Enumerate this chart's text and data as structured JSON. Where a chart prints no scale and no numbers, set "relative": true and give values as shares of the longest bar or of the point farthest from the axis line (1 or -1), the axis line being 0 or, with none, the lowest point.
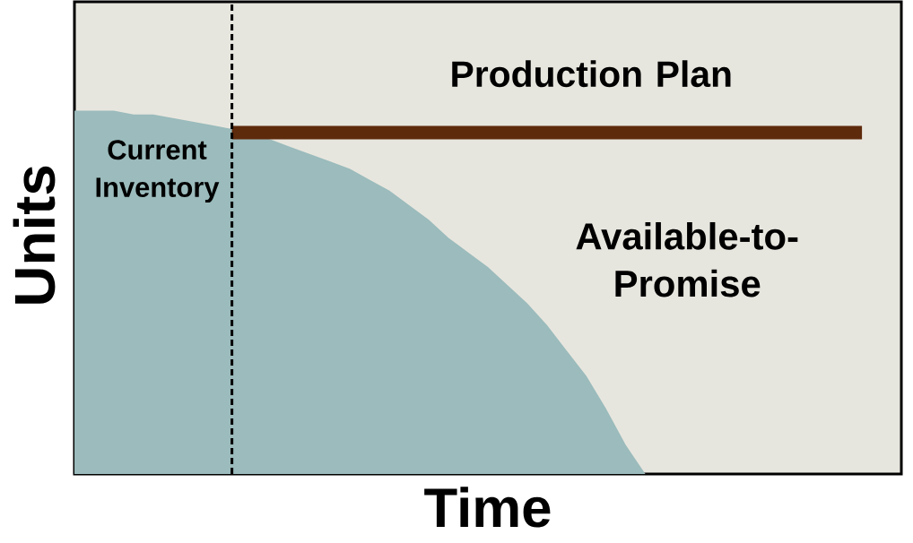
{
  "chart_data": {
    "type": "area",
    "xlabel": "Time",
    "ylabel": "Units",
    "relative": true,
    "categories": [
      null,
      null,
      null,
      null,
      null,
      null,
      null,
      null,
      null,
      null,
      null,
      null,
      null,
      null,
      null,
      null,
      null,
      null,
      null,
      null,
      null,
      null,
      null,
      null,
      null,
      null,
      null,
      null,
      null,
      null,
      null,
      null,
      null,
      null,
      null,
      null,
      null,
      null,
      null,
      null,
      null,
      null,
      null
    ],
    "series": [
      {
        "name": "Current Inventory",
        "color": "#9bbbbc",
        "values": [
          1.0,
          1.0,
          1.0,
          0.99,
          0.99,
          0.98,
          0.97,
          0.96,
          0.95,
          0.94,
          0.92,
          0.9,
          0.88,
          0.86,
          0.84,
          0.81,
          0.78,
          0.74,
          0.7,
          0.65,
          0.61,
          0.57,
          0.52,
          0.47,
          0.41,
          0.34,
          0.27,
          0.18,
          0.08,
          0,
          null,
          null,
          null,
          null,
          null,
          null,
          null,
          null,
          null,
          null,
          null,
          null,
          null
        ]
      },
      {
        "name": "Production Plan",
        "type": "line",
        "color": "#5e2a0c",
        "values": [
          null,
          null,
          null,
          null,
          null,
          null,
          null,
          null,
          0.94,
          0.94,
          0.94,
          0.94,
          0.94,
          0.94,
          0.94,
          0.94,
          0.94,
          0.94,
          0.94,
          0.94,
          0.94,
          0.94,
          0.94,
          0.94,
          0.94,
          0.94,
          0.94,
          0.94,
          0.94,
          0.94,
          0.94,
          0.94,
          0.94,
          0.94,
          0.94,
          0.94,
          0.94,
          0.94,
          0.94,
          0.94,
          0.94,
          null,
          null
        ]
      }
    ],
    "annotations": [
      "Available-to-Promise"
    ]
  }
}
